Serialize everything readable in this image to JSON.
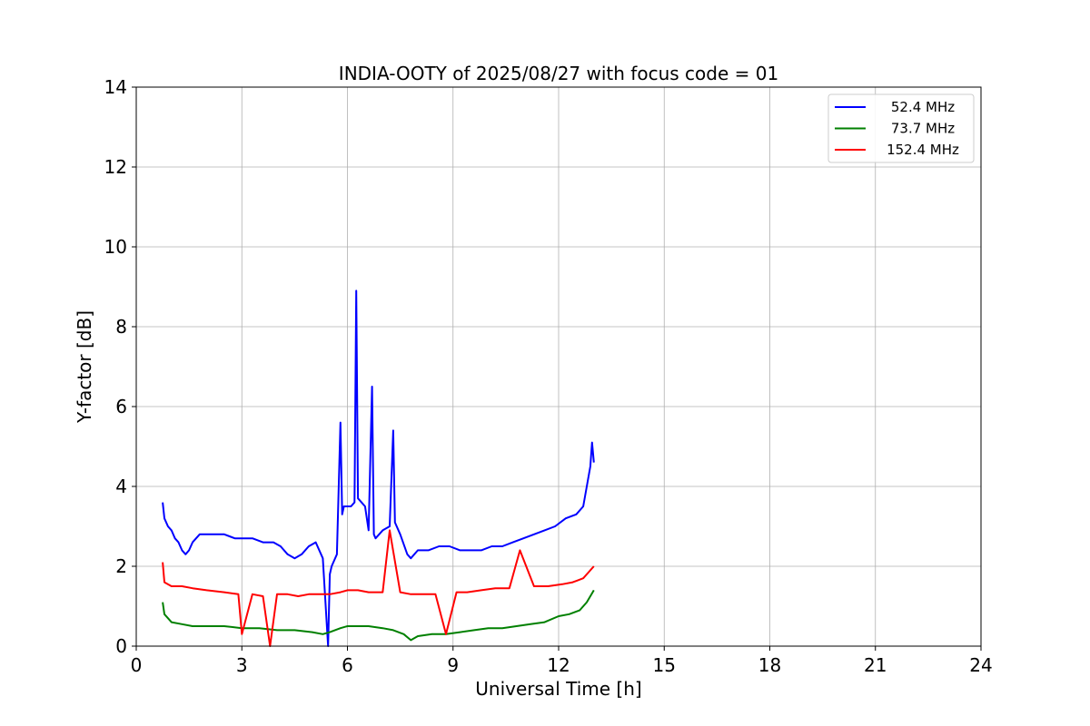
{
  "chart_data": {
    "type": "line",
    "title": "INDIA-OOTY of 2025/08/27 with focus code = 01",
    "xlabel": "Universal Time [h]",
    "ylabel": "Y-factor [dB]",
    "xlim": [
      0,
      24
    ],
    "ylim": [
      0,
      14
    ],
    "xticks": [
      0,
      3,
      6,
      9,
      12,
      15,
      18,
      21,
      24
    ],
    "yticks": [
      0,
      2,
      4,
      6,
      8,
      10,
      12,
      14
    ],
    "grid": true,
    "legend_position": "top-right",
    "series": [
      {
        "name": "52.4 MHz",
        "color": "#0000ff",
        "x": [
          0.75,
          0.8,
          0.9,
          1.0,
          1.1,
          1.2,
          1.3,
          1.4,
          1.5,
          1.6,
          1.8,
          2.0,
          2.2,
          2.5,
          2.8,
          3.0,
          3.3,
          3.6,
          3.9,
          4.1,
          4.3,
          4.5,
          4.7,
          4.9,
          5.1,
          5.3,
          5.45,
          5.5,
          5.55,
          5.7,
          5.8,
          5.85,
          5.9,
          6.0,
          6.1,
          6.2,
          6.25,
          6.3,
          6.4,
          6.5,
          6.6,
          6.7,
          6.75,
          6.8,
          7.0,
          7.2,
          7.3,
          7.35,
          7.5,
          7.7,
          7.8,
          8.0,
          8.3,
          8.6,
          8.9,
          9.2,
          9.5,
          9.8,
          10.1,
          10.4,
          10.7,
          11.0,
          11.3,
          11.6,
          11.9,
          12.2,
          12.5,
          12.7,
          12.8,
          12.9,
          12.95,
          13.0
        ],
        "values": [
          3.6,
          3.2,
          3.0,
          2.9,
          2.7,
          2.6,
          2.4,
          2.3,
          2.4,
          2.6,
          2.8,
          2.8,
          2.8,
          2.8,
          2.7,
          2.7,
          2.7,
          2.6,
          2.6,
          2.5,
          2.3,
          2.2,
          2.3,
          2.5,
          2.6,
          2.2,
          0.0,
          1.8,
          2.0,
          2.3,
          5.6,
          3.3,
          3.5,
          3.5,
          3.5,
          3.6,
          8.9,
          3.7,
          3.6,
          3.5,
          2.9,
          6.5,
          2.8,
          2.7,
          2.9,
          3.0,
          5.4,
          3.1,
          2.8,
          2.3,
          2.2,
          2.4,
          2.4,
          2.5,
          2.5,
          2.4,
          2.4,
          2.4,
          2.5,
          2.5,
          2.6,
          2.7,
          2.8,
          2.9,
          3.0,
          3.2,
          3.3,
          3.5,
          4.0,
          4.5,
          5.1,
          4.6
        ]
      },
      {
        "name": "73.7 MHz",
        "color": "#008000",
        "x": [
          0.75,
          0.8,
          1.0,
          1.3,
          1.6,
          2.0,
          2.5,
          3.0,
          3.5,
          4.0,
          4.5,
          5.0,
          5.3,
          5.5,
          5.8,
          6.0,
          6.3,
          6.6,
          7.0,
          7.3,
          7.6,
          7.8,
          8.0,
          8.4,
          8.8,
          9.2,
          9.6,
          10.0,
          10.4,
          10.8,
          11.2,
          11.6,
          12.0,
          12.3,
          12.6,
          12.8,
          13.0
        ],
        "values": [
          1.1,
          0.8,
          0.6,
          0.55,
          0.5,
          0.5,
          0.5,
          0.45,
          0.45,
          0.4,
          0.4,
          0.35,
          0.3,
          0.35,
          0.45,
          0.5,
          0.5,
          0.5,
          0.45,
          0.4,
          0.3,
          0.15,
          0.25,
          0.3,
          0.3,
          0.35,
          0.4,
          0.45,
          0.45,
          0.5,
          0.55,
          0.6,
          0.75,
          0.8,
          0.9,
          1.1,
          1.4
        ]
      },
      {
        "name": "152.4 MHz",
        "color": "#ff0000",
        "x": [
          0.75,
          0.8,
          1.0,
          1.3,
          1.6,
          2.0,
          2.5,
          2.9,
          3.0,
          3.3,
          3.6,
          3.8,
          4.0,
          4.3,
          4.6,
          4.9,
          5.2,
          5.5,
          5.8,
          6.0,
          6.3,
          6.6,
          7.0,
          7.2,
          7.5,
          7.8,
          8.1,
          8.5,
          8.8,
          9.1,
          9.4,
          9.8,
          10.2,
          10.6,
          10.9,
          11.3,
          11.7,
          12.1,
          12.4,
          12.7,
          13.0
        ],
        "values": [
          2.1,
          1.6,
          1.5,
          1.5,
          1.45,
          1.4,
          1.35,
          1.3,
          0.3,
          1.3,
          1.25,
          0.0,
          1.3,
          1.3,
          1.25,
          1.3,
          1.3,
          1.3,
          1.35,
          1.4,
          1.4,
          1.35,
          1.35,
          2.9,
          1.35,
          1.3,
          1.3,
          1.3,
          0.3,
          1.35,
          1.35,
          1.4,
          1.45,
          1.45,
          2.4,
          1.5,
          1.5,
          1.55,
          1.6,
          1.7,
          2.0
        ]
      }
    ]
  }
}
